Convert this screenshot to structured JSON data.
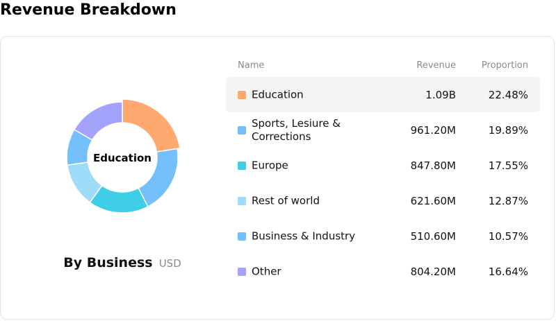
{
  "page": {
    "title": "Revenue Breakdown"
  },
  "chart": {
    "center_label": "Education",
    "caption_title": "By Business",
    "caption_unit": "USD"
  },
  "table": {
    "headers": {
      "name": "Name",
      "revenue": "Revenue",
      "proportion": "Proportion"
    },
    "rows": [
      {
        "name": "Education",
        "revenue": "1.09B",
        "proportion": "22.48%",
        "color": "#ffa870",
        "active": true
      },
      {
        "name": "Sports, Lesiure & Corrections",
        "revenue": "961.20M",
        "proportion": "19.89%",
        "color": "#74c0fc",
        "active": false
      },
      {
        "name": "Europe",
        "revenue": "847.80M",
        "proportion": "17.55%",
        "color": "#3ecfe6",
        "active": false
      },
      {
        "name": "Rest of world",
        "revenue": "621.60M",
        "proportion": "12.87%",
        "color": "#9edcfa",
        "active": false
      },
      {
        "name": "Business & Industry",
        "revenue": "510.60M",
        "proportion": "10.57%",
        "color": "#74c0fc",
        "active": false
      },
      {
        "name": "Other",
        "revenue": "804.20M",
        "proportion": "16.64%",
        "color": "#a3a3fc",
        "active": false
      }
    ]
  },
  "chart_data": {
    "type": "pie",
    "title": "By Business",
    "unit": "USD",
    "categories": [
      "Education",
      "Sports, Lesiure & Corrections",
      "Europe",
      "Rest of world",
      "Business & Industry",
      "Other"
    ],
    "revenue": [
      "1.09B",
      "961.20M",
      "847.80M",
      "621.60M",
      "510.60M",
      "804.20M"
    ],
    "values": [
      22.48,
      19.89,
      17.55,
      12.87,
      10.57,
      16.64
    ],
    "colors": [
      "#ffa870",
      "#74c0fc",
      "#3ecfe6",
      "#9edcfa",
      "#74c0fc",
      "#a3a3fc"
    ],
    "highlighted": "Education",
    "donut": true
  }
}
